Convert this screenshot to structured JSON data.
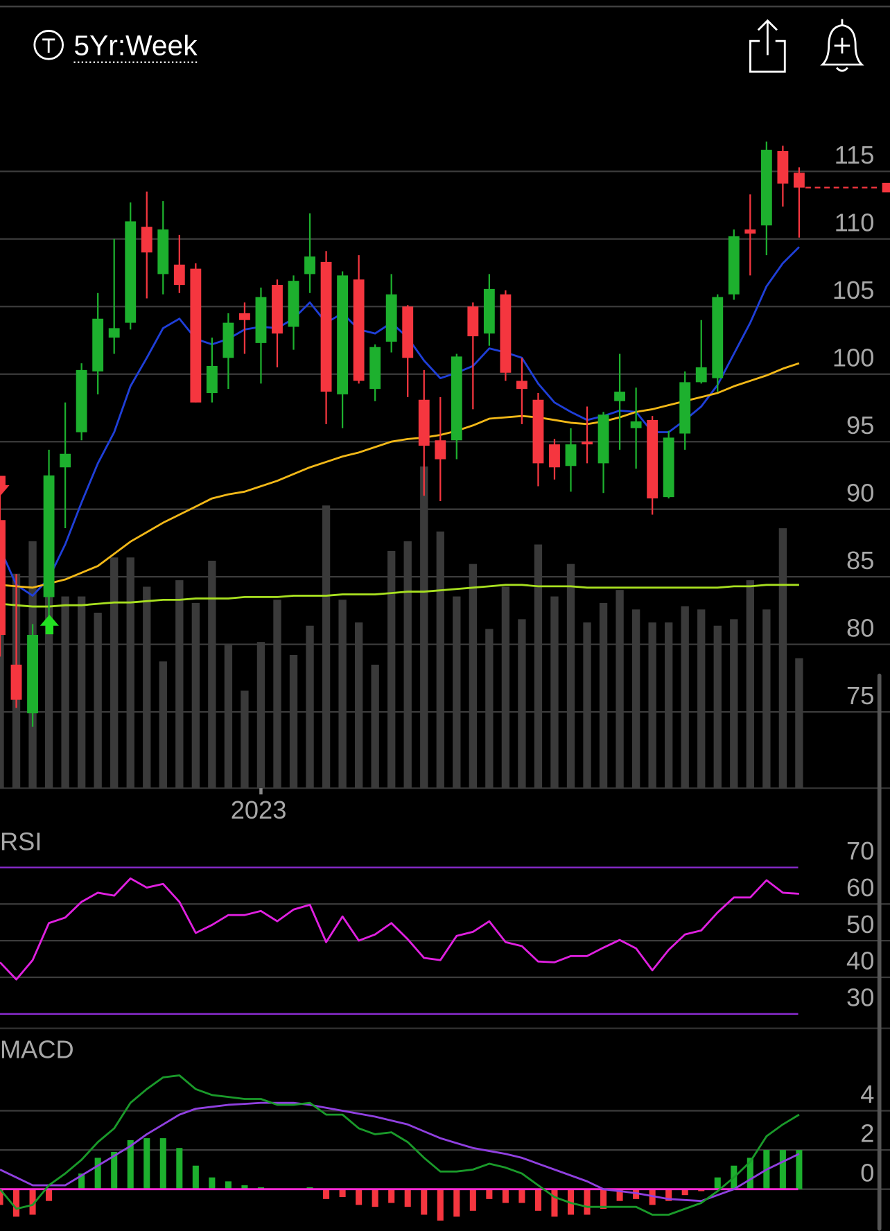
{
  "header": {
    "title": "5Yr:Week"
  },
  "chart_data": [
    {
      "type": "candlestick",
      "categories": [
        null,
        null,
        null,
        null,
        null,
        null,
        null,
        null,
        null,
        null,
        null,
        null,
        null,
        null,
        null,
        null,
        "2023",
        null,
        null,
        null,
        null,
        null,
        null,
        null,
        null,
        null,
        null,
        null,
        null,
        null,
        null,
        null,
        null,
        null,
        null,
        null,
        null,
        null,
        null,
        null,
        null,
        null,
        null,
        null,
        null,
        null,
        null,
        null,
        null,
        null
      ],
      "open": [
        89.2,
        78.5,
        74.9,
        83.5,
        93.1,
        95.7,
        100.2,
        102.7,
        103.8,
        110.9,
        107.4,
        108.1,
        107.8,
        98.6,
        101.2,
        104.5,
        102.3,
        106.6,
        103.5,
        107.4,
        108.3,
        98.5,
        107.0,
        98.9,
        102.4,
        105.0,
        98.1,
        95.1,
        95.1,
        105.0,
        103.0,
        105.9,
        99.5,
        98.1,
        94.8,
        93.2,
        95.0,
        93.4,
        98.0,
        96.0,
        96.6,
        90.9,
        95.6,
        99.4,
        99.7,
        105.9,
        110.7,
        111.0,
        116.5,
        114.9
      ],
      "high": [
        92.2,
        85.2,
        81.5,
        94.4,
        97.9,
        100.8,
        106.0,
        110.0,
        112.7,
        113.5,
        112.8,
        110.3,
        108.2,
        102.7,
        104.5,
        105.3,
        106.4,
        107.0,
        107.3,
        111.9,
        109.1,
        107.6,
        108.8,
        102.2,
        107.4,
        105.1,
        100.3,
        98.3,
        101.5,
        105.3,
        107.4,
        106.2,
        101.2,
        98.6,
        95.2,
        96.0,
        97.6,
        97.2,
        101.5,
        99.0,
        96.9,
        95.8,
        100.2,
        104.0,
        105.9,
        110.7,
        113.3,
        117.2,
        116.9,
        115.3
      ],
      "low": [
        79.1,
        75.3,
        73.9,
        81.7,
        88.6,
        95.1,
        98.5,
        101.5,
        103.3,
        105.6,
        105.9,
        106.0,
        97.9,
        97.9,
        98.9,
        101.5,
        99.3,
        100.5,
        101.8,
        106.0,
        96.3,
        96.0,
        99.3,
        98.0,
        101.6,
        98.3,
        91.0,
        90.6,
        93.7,
        97.4,
        102.1,
        99.5,
        96.3,
        91.7,
        92.2,
        91.3,
        93.4,
        91.2,
        94.4,
        93.0,
        89.6,
        90.8,
        94.4,
        99.3,
        98.7,
        105.5,
        107.3,
        108.8,
        112.4,
        110.1
      ],
      "close": [
        80.7,
        75.9,
        80.7,
        92.5,
        94.1,
        100.3,
        104.1,
        103.4,
        111.3,
        109.0,
        110.7,
        106.6,
        97.9,
        100.6,
        103.8,
        104.0,
        105.7,
        103.0,
        106.9,
        108.7,
        98.7,
        107.3,
        99.5,
        102.0,
        105.9,
        101.2,
        94.7,
        93.7,
        101.3,
        102.8,
        106.3,
        100.1,
        98.9,
        93.4,
        93.1,
        94.8,
        94.8,
        97.0,
        98.7,
        96.5,
        90.8,
        95.3,
        99.4,
        100.5,
        105.7,
        110.2,
        110.4,
        116.6,
        114.1,
        113.8
      ],
      "up_color": "#1db02e",
      "down_color": "#f5363f",
      "volume": [
        54,
        66,
        76,
        64,
        59,
        59,
        54,
        71,
        71,
        62,
        39,
        64,
        57,
        70,
        44,
        30,
        45,
        58,
        41,
        50,
        87,
        58,
        51,
        38,
        73,
        76,
        99,
        79,
        59,
        69,
        49,
        62,
        52,
        75,
        59,
        69,
        51,
        57,
        61,
        55,
        51,
        51,
        56,
        55,
        50,
        52,
        64,
        55,
        80,
        40
      ],
      "volume_color": "#3a3a3a",
      "volume_ylim": [
        0,
        100
      ],
      "lines": [
        {
          "color": "#1f3fd8",
          "values": [
            87.1,
            84.4,
            83.6,
            84.9,
            87.4,
            90.5,
            93.4,
            95.7,
            99.1,
            101.2,
            103.4,
            104.1,
            102.6,
            102.2,
            102.6,
            103.3,
            103.5,
            103.4,
            104.1,
            105.3,
            103.8,
            104.5,
            103.3,
            103.0,
            103.8,
            102.7,
            101.0,
            99.7,
            100.1,
            100.6,
            101.9,
            101.6,
            101.2,
            99.3,
            97.9,
            97.2,
            96.6,
            96.9,
            97.3,
            97.2,
            95.7,
            95.7,
            96.6,
            97.6,
            99.2,
            101.5,
            103.8,
            106.5,
            108.2,
            109.4
          ]
        },
        {
          "color": "#f2b818",
          "values": [
            84.4,
            84.3,
            84.2,
            84.5,
            84.8,
            85.3,
            85.8,
            86.7,
            87.6,
            88.3,
            89.0,
            89.6,
            90.2,
            90.8,
            91.1,
            91.3,
            91.7,
            92.1,
            92.6,
            93.1,
            93.5,
            93.9,
            94.2,
            94.6,
            95.0,
            95.2,
            95.3,
            95.5,
            95.8,
            96.2,
            96.7,
            96.8,
            96.9,
            96.8,
            96.6,
            96.4,
            96.3,
            96.5,
            96.8,
            97.2,
            97.4,
            97.7,
            98.0,
            98.3,
            98.6,
            99.1,
            99.5,
            99.9,
            100.4,
            100.8
          ]
        },
        {
          "color": "#a8e020",
          "values": [
            83.0,
            82.9,
            82.8,
            82.8,
            82.9,
            82.9,
            83.0,
            83.1,
            83.1,
            83.2,
            83.3,
            83.3,
            83.4,
            83.4,
            83.4,
            83.5,
            83.5,
            83.5,
            83.6,
            83.6,
            83.6,
            83.7,
            83.7,
            83.7,
            83.8,
            83.9,
            83.9,
            84.0,
            84.1,
            84.2,
            84.3,
            84.4,
            84.4,
            84.3,
            84.3,
            84.3,
            84.2,
            84.2,
            84.2,
            84.2,
            84.2,
            84.2,
            84.2,
            84.2,
            84.2,
            84.3,
            84.3,
            84.4,
            84.4,
            84.4
          ]
        }
      ],
      "ylim": [
        70,
        120
      ],
      "yticks": [
        115,
        110,
        105,
        100,
        95,
        90,
        85,
        80,
        75
      ],
      "grid": true
    },
    {
      "type": "line",
      "title": "RSI",
      "color": "#e020e0",
      "band_color": "#8a2bd0",
      "values": [
        44.1,
        39.4,
        44.7,
        54.8,
        56.3,
        60.6,
        63.1,
        62.3,
        67.0,
        64.5,
        65.5,
        60.6,
        52.1,
        54.3,
        57.0,
        57.0,
        58.1,
        55.3,
        58.5,
        59.8,
        49.6,
        56.6,
        50.0,
        51.7,
        54.8,
        50.4,
        45.3,
        44.7,
        51.3,
        52.4,
        55.3,
        49.6,
        48.5,
        44.3,
        44.1,
        45.8,
        45.8,
        48.1,
        50.2,
        47.9,
        41.9,
        47.5,
        51.7,
        52.8,
        57.7,
        61.8,
        61.8,
        66.5,
        63.1,
        62.8
      ],
      "ylim": [
        28,
        73
      ],
      "yticks": [
        70,
        60,
        50,
        40,
        30
      ],
      "grid": true
    },
    {
      "type": "macd",
      "title": "MACD",
      "macd": {
        "color": "#1a9a2a",
        "values": [
          0,
          -1.0,
          -0.8,
          0.2,
          0.8,
          1.5,
          2.4,
          3.1,
          4.4,
          5.1,
          5.7,
          5.8,
          5.1,
          4.8,
          4.7,
          4.6,
          4.6,
          4.3,
          4.3,
          4.4,
          3.8,
          3.8,
          3.1,
          2.8,
          2.9,
          2.4,
          1.6,
          0.9,
          0.9,
          1.0,
          1.3,
          1.1,
          0.8,
          0.2,
          -0.4,
          -0.7,
          -0.9,
          -0.9,
          -0.9,
          -0.9,
          -1.3,
          -1.3,
          -1.0,
          -0.7,
          -0.1,
          0.6,
          1.4,
          2.7,
          3.3,
          3.8
        ]
      },
      "signal": {
        "color": "#9040e0",
        "values": [
          1.0,
          0.6,
          0.2,
          0.2,
          0.2,
          0.7,
          1.2,
          1.7,
          2.2,
          2.8,
          3.3,
          3.8,
          4.1,
          4.2,
          4.3,
          4.35,
          4.4,
          4.4,
          4.4,
          4.3,
          4.15,
          4.0,
          3.85,
          3.7,
          3.5,
          3.3,
          2.95,
          2.6,
          2.35,
          2.1,
          1.95,
          1.8,
          1.6,
          1.3,
          1.0,
          0.7,
          0.4,
          0.0,
          -0.1,
          -0.2,
          -0.35,
          -0.5,
          -0.55,
          -0.6,
          -0.3,
          0.0,
          0.5,
          1.0,
          1.4,
          1.8
        ]
      },
      "histogram": {
        "up_color": "#1db02e",
        "down_color": "#f5363f",
        "values": [
          -0.8,
          -1.4,
          -1.3,
          -0.6,
          0,
          0.8,
          1.6,
          1.9,
          2.5,
          2.6,
          2.6,
          2.1,
          1.2,
          0.6,
          0.4,
          0.2,
          0.1,
          0,
          0,
          0.1,
          -0.5,
          -0.4,
          -0.8,
          -0.9,
          -0.7,
          -0.9,
          -1.3,
          -1.6,
          -1.4,
          -1.1,
          -0.5,
          -0.7,
          -0.7,
          -1.1,
          -1.4,
          -1.3,
          -1.3,
          -1.0,
          -0.6,
          -0.5,
          -0.8,
          -0.6,
          -0.3,
          -0.1,
          0.6,
          1.2,
          1.6,
          2.0,
          2.0,
          2.0
        ]
      },
      "zero_color": "#ff2bd6",
      "ylim": [
        -2,
        7
      ],
      "yticks": [
        4,
        2,
        0
      ],
      "grid": true
    }
  ]
}
